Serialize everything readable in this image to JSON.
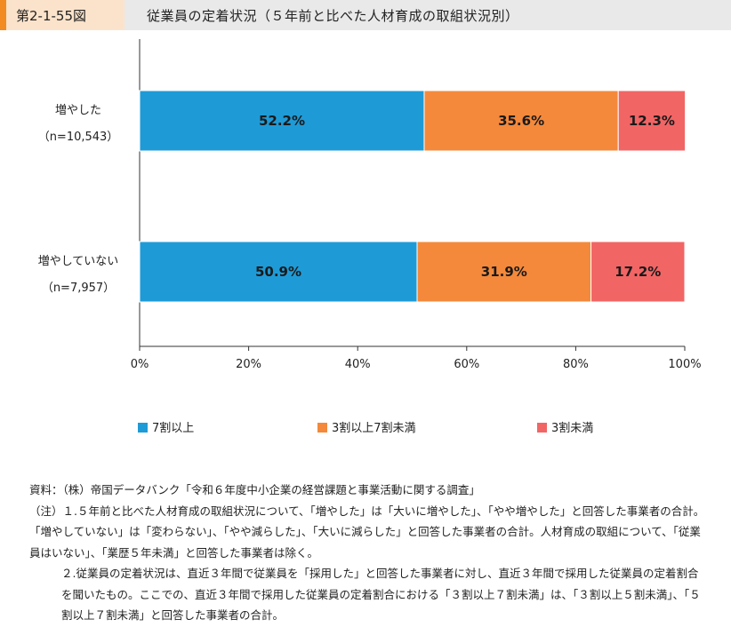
{
  "figure": {
    "number": "第2-1-55図",
    "title": "従業員の定着状況（５年前と比べた人材育成の取組状況別）"
  },
  "chart_data": {
    "type": "bar",
    "orientation": "horizontal",
    "stacked": true,
    "categories": [
      {
        "label": "増やした",
        "n": "（n=10,543）"
      },
      {
        "label": "増やしていない",
        "n": "（n=7,957）"
      }
    ],
    "series": [
      {
        "name": "7割以上",
        "color": "#1e9bd7",
        "values": [
          52.2,
          50.9
        ],
        "labels": [
          "52.2%",
          "50.9%"
        ]
      },
      {
        "name": "3割以上7割未満",
        "color": "#f4893b",
        "values": [
          35.6,
          31.9
        ],
        "labels": [
          "35.6%",
          "31.9%"
        ]
      },
      {
        "name": "3割未満",
        "color": "#f26565",
        "values": [
          12.3,
          17.2
        ],
        "labels": [
          "12.3%",
          "17.2%"
        ]
      }
    ],
    "xlim": [
      0,
      100
    ],
    "xticks": [
      "0%",
      "20%",
      "40%",
      "60%",
      "80%",
      "100%"
    ],
    "grid": false,
    "legend_position": "bottom"
  },
  "notes": {
    "source": "資料：（株）帝国データバンク「令和６年度中小企業の経営課題と事業活動に関する調査」",
    "note1": "（注）１.５年前と比べた人材育成の取組状況について、「増やした」は「大いに増やした」、「やや増やした」と回答した事業者の合計。「増やしていない」は「変わらない」、「やや減らした」、「大いに減らした」と回答した事業者の合計。人材育成の取組について、「従業員はいない」、「業歴５年未満」と回答した事業者は除く。",
    "note2": "２.従業員の定着状況は、直近３年間で従業員を「採用した」と回答した事業者に対し、直近３年間で採用した従業員の定着割合を聞いたもの。ここでの、直近３年間で採用した従業員の定着割合における「３割以上７割未満」は、「３割以上５割未満」、「５割以上７割未満」と回答した事業者の合計。"
  }
}
